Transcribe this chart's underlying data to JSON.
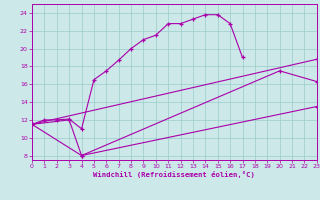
{
  "xlabel": "Windchill (Refroidissement éolien,°C)",
  "bg_color": "#cce8e8",
  "line_color": "#aa00aa",
  "grid_color": "#99cccc",
  "xlim": [
    0,
    23
  ],
  "ylim": [
    7.5,
    25
  ],
  "xticks": [
    0,
    1,
    2,
    3,
    4,
    5,
    6,
    7,
    8,
    9,
    10,
    11,
    12,
    13,
    14,
    15,
    16,
    17,
    18,
    19,
    20,
    21,
    22,
    23
  ],
  "yticks": [
    8,
    10,
    12,
    14,
    16,
    18,
    20,
    22,
    24
  ],
  "curve1_x": [
    0,
    1,
    2,
    3,
    4,
    5,
    6,
    7,
    8,
    9,
    10,
    11,
    12,
    13,
    14,
    15,
    16,
    17
  ],
  "curve1_y": [
    11.5,
    12.0,
    12.0,
    12.1,
    11.0,
    16.5,
    17.5,
    18.7,
    20.0,
    21.0,
    21.5,
    22.8,
    22.8,
    23.3,
    23.8,
    23.8,
    22.8,
    19.0
  ],
  "curve2_x": [
    0,
    3,
    4,
    23
  ],
  "curve2_y": [
    11.5,
    12.0,
    8.0,
    13.5
  ],
  "curve3_x": [
    0,
    23
  ],
  "curve3_y": [
    11.5,
    18.8
  ],
  "curve4_x": [
    0,
    4,
    20,
    23
  ],
  "curve4_y": [
    11.5,
    8.0,
    17.5,
    16.3
  ]
}
